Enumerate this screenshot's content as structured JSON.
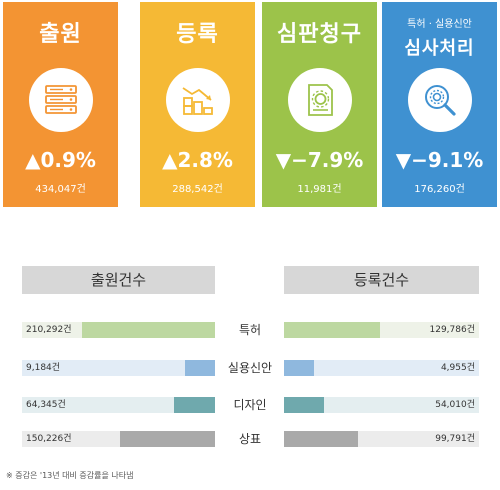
{
  "cards": [
    {
      "title": "출원",
      "subtitle": "",
      "icon": "server-icon",
      "rate": "▲0.9%",
      "count": "434,047건",
      "color": "#f39433"
    },
    {
      "title": "등록",
      "subtitle": "",
      "icon": "coins-chart-icon",
      "rate": "▲2.8%",
      "count": "288,542건",
      "color": "#f5b935"
    },
    {
      "title": "심판청구",
      "subtitle": "",
      "icon": "document-gear-icon",
      "rate": "▼−7.9%",
      "count": "11,981건",
      "color": "#9cc34a"
    },
    {
      "title": "심사처리",
      "subtitle": "특허 · 실용신안",
      "icon": "magnifier-gear-icon",
      "rate": "▼−9.1%",
      "count": "176,260건",
      "color": "#3f91d1"
    }
  ],
  "chart_data": {
    "type": "bar",
    "categories": [
      "특허",
      "실용신안",
      "디자인",
      "상표"
    ],
    "series": [
      {
        "name": "출원건수",
        "values": [
          210292,
          9184,
          64345,
          150226
        ],
        "labels": [
          "210,292건",
          "9,184건",
          "64,345건",
          "150,226건"
        ]
      },
      {
        "name": "등록건수",
        "values": [
          129786,
          4955,
          54010,
          99791
        ],
        "labels": [
          "129,786건",
          "4,955건",
          "54,010건",
          "99,791건"
        ]
      }
    ],
    "bar_colors": [
      "#bdd8a1",
      "#8fb8de",
      "#6fa9ad",
      "#a9a9a9"
    ],
    "track_colors": [
      "#eef2e8",
      "#e2ecf6",
      "#e4eef0",
      "#ececec"
    ]
  },
  "footnote": "※ 증감은 '13년 대비 증감률을 나타냄"
}
